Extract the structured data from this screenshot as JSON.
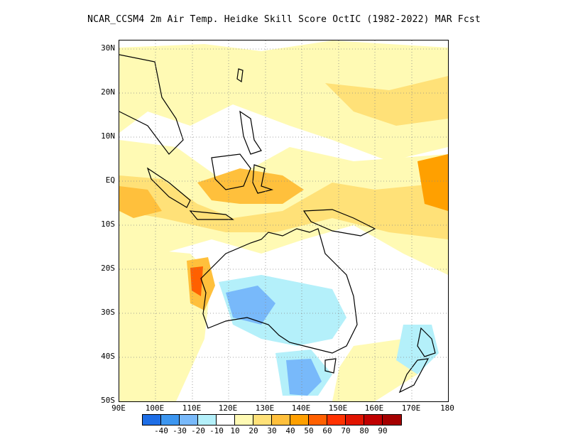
{
  "title": "NCAR_CCSM4  2m Air Temp. Heidke Skill Score OctIC (1982-2022) MAR Fcst",
  "map": {
    "lon_range": [
      90,
      180
    ],
    "lat_range": [
      -50,
      32
    ],
    "lat_labels": [
      "30N",
      "20N",
      "10N",
      "EQ",
      "10S",
      "20S",
      "30S",
      "40S",
      "50S"
    ],
    "lon_labels": [
      "90E",
      "100E",
      "110E",
      "120E",
      "130E",
      "140E",
      "150E",
      "160E",
      "170E",
      "180"
    ],
    "grid": "dotted"
  },
  "colorbar": {
    "colors": [
      "#1e6ee6",
      "#3c96f0",
      "#78b9fa",
      "#b4f0fa",
      "#ffffff",
      "#fffab4",
      "#ffe178",
      "#ffc03c",
      "#ffa000",
      "#ff6000",
      "#ff3200",
      "#e11400",
      "#c00000",
      "#a50000"
    ],
    "labels": [
      "-40",
      "-30",
      "-20",
      "-10",
      "10",
      "20",
      "30",
      "40",
      "50",
      "60",
      "70",
      "80",
      "90"
    ]
  }
}
